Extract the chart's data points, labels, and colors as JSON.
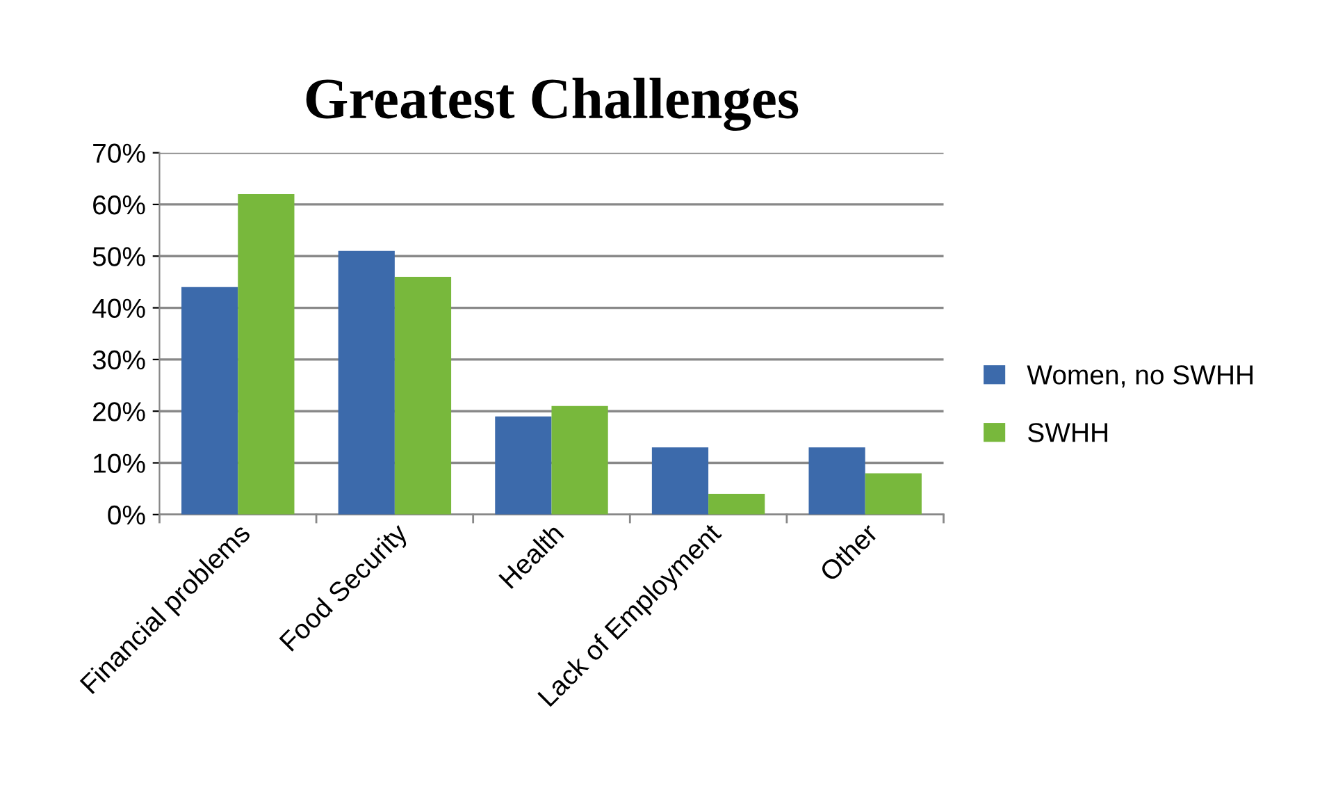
{
  "chart_data": {
    "type": "bar",
    "title": "Greatest Challenges",
    "categories": [
      "Financial problems",
      "Food Security",
      "Health",
      "Lack of Employment",
      "Other"
    ],
    "series": [
      {
        "name": "Women, no SWHH",
        "color": "#3c6aab",
        "values": [
          0.44,
          0.51,
          0.19,
          0.13,
          0.13
        ]
      },
      {
        "name": "SWHH",
        "color": "#78b83c",
        "values": [
          0.62,
          0.46,
          0.21,
          0.04,
          0.08
        ]
      }
    ],
    "ylim": [
      0,
      0.7
    ],
    "yticks": [
      {
        "value": 0,
        "label": "0%"
      },
      {
        "value": 0.1,
        "label": "10%"
      },
      {
        "value": 0.2,
        "label": "20%"
      },
      {
        "value": 0.3,
        "label": "30%"
      },
      {
        "value": 0.4,
        "label": "40%"
      },
      {
        "value": 0.5,
        "label": "50%"
      },
      {
        "value": 0.6,
        "label": "60%"
      },
      {
        "value": 0.7,
        "label": "70%"
      }
    ],
    "grid": "y",
    "legend": "right"
  }
}
